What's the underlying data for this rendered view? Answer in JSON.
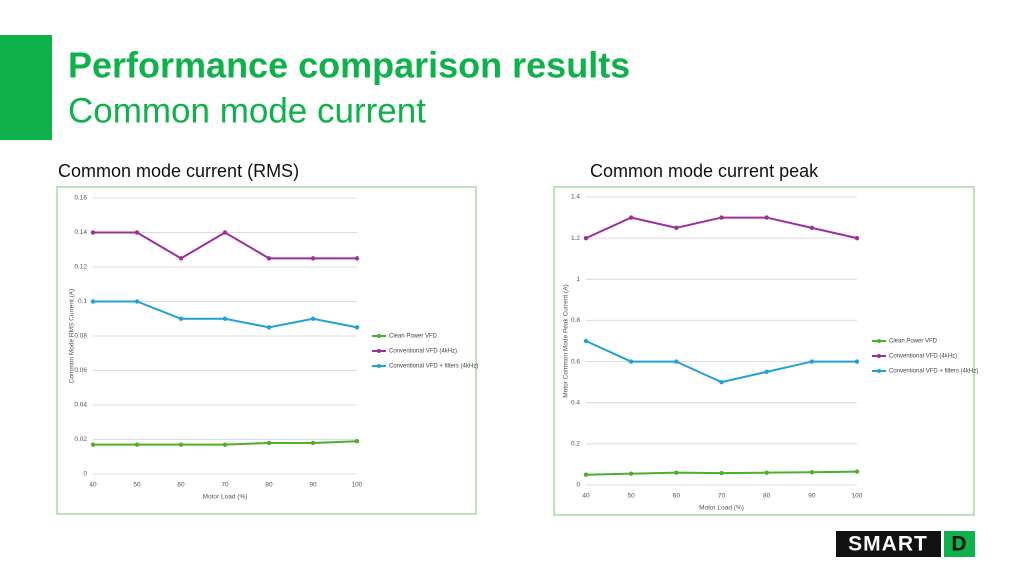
{
  "header": {
    "title": "Performance comparison results",
    "subtitle": "Common mode current"
  },
  "logo": {
    "text": "SMART",
    "mark": "D"
  },
  "chart_data": [
    {
      "type": "line",
      "title": "Common mode current (RMS)",
      "x_label": "Motor Load (%)",
      "y_label": "Common Mode RMS Current  (A)",
      "x": [
        40,
        50,
        60,
        70,
        80,
        90,
        100
      ],
      "xlim": [
        40,
        100
      ],
      "xticks": [
        40,
        50,
        60,
        70,
        80,
        90,
        100
      ],
      "ylim": [
        0,
        0.16
      ],
      "yticks": [
        0,
        0.02,
        0.04,
        0.06,
        0.08,
        0.1,
        0.12,
        0.14,
        0.16
      ],
      "grid": true,
      "legend": "right",
      "series": [
        {
          "name": "Clean Power VFD",
          "color": "#4caf2e",
          "values": [
            0.017,
            0.017,
            0.017,
            0.017,
            0.018,
            0.018,
            0.019
          ]
        },
        {
          "name": "Conventional VFD (4kHz)",
          "color": "#9c2f9a",
          "values": [
            0.14,
            0.14,
            0.125,
            0.14,
            0.125,
            0.125,
            0.125
          ]
        },
        {
          "name": "Conventional VFD + filters (4kHz)",
          "color": "#22a0d8",
          "values": [
            0.1,
            0.1,
            0.09,
            0.09,
            0.085,
            0.09,
            0.085
          ]
        }
      ]
    },
    {
      "type": "line",
      "title": "Common mode current peak",
      "x_label": "Motor Load (%)",
      "y_label": "Motor Common Mode Peak Current (A)",
      "x": [
        40,
        50,
        60,
        70,
        80,
        90,
        100
      ],
      "xlim": [
        40,
        100
      ],
      "xticks": [
        40,
        50,
        60,
        70,
        80,
        90,
        100
      ],
      "ylim": [
        0,
        1.4
      ],
      "yticks": [
        0,
        0.2,
        0.4,
        0.6,
        0.8,
        1,
        1.2,
        1.4
      ],
      "grid": true,
      "legend": "right",
      "series": [
        {
          "name": "Clean Power VFD",
          "color": "#4caf2e",
          "values": [
            0.05,
            0.055,
            0.06,
            0.058,
            0.06,
            0.062,
            0.065
          ]
        },
        {
          "name": "Conventional VFD (4kHz)",
          "color": "#9c2f9a",
          "values": [
            1.2,
            1.3,
            1.25,
            1.3,
            1.3,
            1.25,
            1.2
          ]
        },
        {
          "name": "Conventional VFD + filters (4kHz)",
          "color": "#22a0d8",
          "values": [
            0.7,
            0.6,
            0.6,
            0.5,
            0.55,
            0.6,
            0.6
          ]
        }
      ]
    }
  ]
}
